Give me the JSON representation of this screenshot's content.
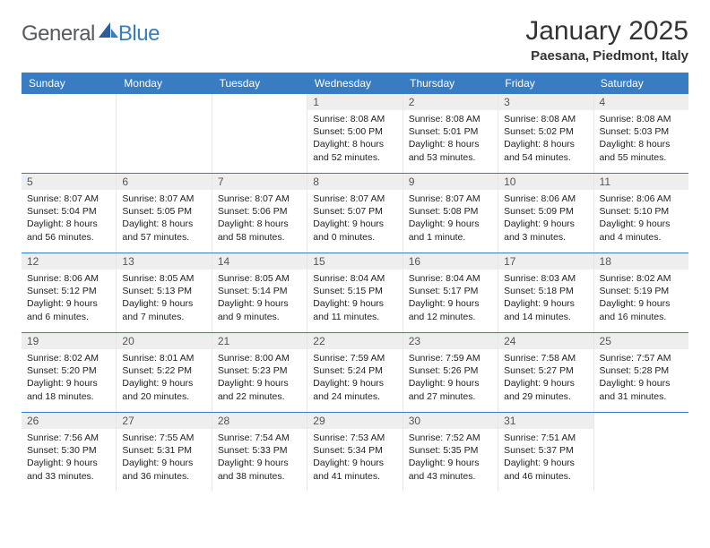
{
  "logo": {
    "general": "General",
    "blue": "Blue"
  },
  "title": "January 2025",
  "location": "Paesana, Piedmont, Italy",
  "colors": {
    "header_bg": "#3a7cc2",
    "daynum_bg": "#eeeeee",
    "row_border": "#3a7cc2"
  },
  "dayNames": [
    "Sunday",
    "Monday",
    "Tuesday",
    "Wednesday",
    "Thursday",
    "Friday",
    "Saturday"
  ],
  "weeks": [
    [
      {
        "empty": true
      },
      {
        "empty": true
      },
      {
        "empty": true
      },
      {
        "num": "1",
        "sunrise": "Sunrise: 8:08 AM",
        "sunset": "Sunset: 5:00 PM",
        "daylight": "Daylight: 8 hours and 52 minutes."
      },
      {
        "num": "2",
        "sunrise": "Sunrise: 8:08 AM",
        "sunset": "Sunset: 5:01 PM",
        "daylight": "Daylight: 8 hours and 53 minutes."
      },
      {
        "num": "3",
        "sunrise": "Sunrise: 8:08 AM",
        "sunset": "Sunset: 5:02 PM",
        "daylight": "Daylight: 8 hours and 54 minutes."
      },
      {
        "num": "4",
        "sunrise": "Sunrise: 8:08 AM",
        "sunset": "Sunset: 5:03 PM",
        "daylight": "Daylight: 8 hours and 55 minutes."
      }
    ],
    [
      {
        "num": "5",
        "sunrise": "Sunrise: 8:07 AM",
        "sunset": "Sunset: 5:04 PM",
        "daylight": "Daylight: 8 hours and 56 minutes."
      },
      {
        "num": "6",
        "sunrise": "Sunrise: 8:07 AM",
        "sunset": "Sunset: 5:05 PM",
        "daylight": "Daylight: 8 hours and 57 minutes."
      },
      {
        "num": "7",
        "sunrise": "Sunrise: 8:07 AM",
        "sunset": "Sunset: 5:06 PM",
        "daylight": "Daylight: 8 hours and 58 minutes."
      },
      {
        "num": "8",
        "sunrise": "Sunrise: 8:07 AM",
        "sunset": "Sunset: 5:07 PM",
        "daylight": "Daylight: 9 hours and 0 minutes."
      },
      {
        "num": "9",
        "sunrise": "Sunrise: 8:07 AM",
        "sunset": "Sunset: 5:08 PM",
        "daylight": "Daylight: 9 hours and 1 minute."
      },
      {
        "num": "10",
        "sunrise": "Sunrise: 8:06 AM",
        "sunset": "Sunset: 5:09 PM",
        "daylight": "Daylight: 9 hours and 3 minutes."
      },
      {
        "num": "11",
        "sunrise": "Sunrise: 8:06 AM",
        "sunset": "Sunset: 5:10 PM",
        "daylight": "Daylight: 9 hours and 4 minutes."
      }
    ],
    [
      {
        "num": "12",
        "sunrise": "Sunrise: 8:06 AM",
        "sunset": "Sunset: 5:12 PM",
        "daylight": "Daylight: 9 hours and 6 minutes."
      },
      {
        "num": "13",
        "sunrise": "Sunrise: 8:05 AM",
        "sunset": "Sunset: 5:13 PM",
        "daylight": "Daylight: 9 hours and 7 minutes."
      },
      {
        "num": "14",
        "sunrise": "Sunrise: 8:05 AM",
        "sunset": "Sunset: 5:14 PM",
        "daylight": "Daylight: 9 hours and 9 minutes."
      },
      {
        "num": "15",
        "sunrise": "Sunrise: 8:04 AM",
        "sunset": "Sunset: 5:15 PM",
        "daylight": "Daylight: 9 hours and 11 minutes."
      },
      {
        "num": "16",
        "sunrise": "Sunrise: 8:04 AM",
        "sunset": "Sunset: 5:17 PM",
        "daylight": "Daylight: 9 hours and 12 minutes."
      },
      {
        "num": "17",
        "sunrise": "Sunrise: 8:03 AM",
        "sunset": "Sunset: 5:18 PM",
        "daylight": "Daylight: 9 hours and 14 minutes."
      },
      {
        "num": "18",
        "sunrise": "Sunrise: 8:02 AM",
        "sunset": "Sunset: 5:19 PM",
        "daylight": "Daylight: 9 hours and 16 minutes."
      }
    ],
    [
      {
        "num": "19",
        "sunrise": "Sunrise: 8:02 AM",
        "sunset": "Sunset: 5:20 PM",
        "daylight": "Daylight: 9 hours and 18 minutes."
      },
      {
        "num": "20",
        "sunrise": "Sunrise: 8:01 AM",
        "sunset": "Sunset: 5:22 PM",
        "daylight": "Daylight: 9 hours and 20 minutes."
      },
      {
        "num": "21",
        "sunrise": "Sunrise: 8:00 AM",
        "sunset": "Sunset: 5:23 PM",
        "daylight": "Daylight: 9 hours and 22 minutes."
      },
      {
        "num": "22",
        "sunrise": "Sunrise: 7:59 AM",
        "sunset": "Sunset: 5:24 PM",
        "daylight": "Daylight: 9 hours and 24 minutes."
      },
      {
        "num": "23",
        "sunrise": "Sunrise: 7:59 AM",
        "sunset": "Sunset: 5:26 PM",
        "daylight": "Daylight: 9 hours and 27 minutes."
      },
      {
        "num": "24",
        "sunrise": "Sunrise: 7:58 AM",
        "sunset": "Sunset: 5:27 PM",
        "daylight": "Daylight: 9 hours and 29 minutes."
      },
      {
        "num": "25",
        "sunrise": "Sunrise: 7:57 AM",
        "sunset": "Sunset: 5:28 PM",
        "daylight": "Daylight: 9 hours and 31 minutes."
      }
    ],
    [
      {
        "num": "26",
        "sunrise": "Sunrise: 7:56 AM",
        "sunset": "Sunset: 5:30 PM",
        "daylight": "Daylight: 9 hours and 33 minutes."
      },
      {
        "num": "27",
        "sunrise": "Sunrise: 7:55 AM",
        "sunset": "Sunset: 5:31 PM",
        "daylight": "Daylight: 9 hours and 36 minutes."
      },
      {
        "num": "28",
        "sunrise": "Sunrise: 7:54 AM",
        "sunset": "Sunset: 5:33 PM",
        "daylight": "Daylight: 9 hours and 38 minutes."
      },
      {
        "num": "29",
        "sunrise": "Sunrise: 7:53 AM",
        "sunset": "Sunset: 5:34 PM",
        "daylight": "Daylight: 9 hours and 41 minutes."
      },
      {
        "num": "30",
        "sunrise": "Sunrise: 7:52 AM",
        "sunset": "Sunset: 5:35 PM",
        "daylight": "Daylight: 9 hours and 43 minutes."
      },
      {
        "num": "31",
        "sunrise": "Sunrise: 7:51 AM",
        "sunset": "Sunset: 5:37 PM",
        "daylight": "Daylight: 9 hours and 46 minutes."
      },
      {
        "empty": true
      }
    ]
  ]
}
